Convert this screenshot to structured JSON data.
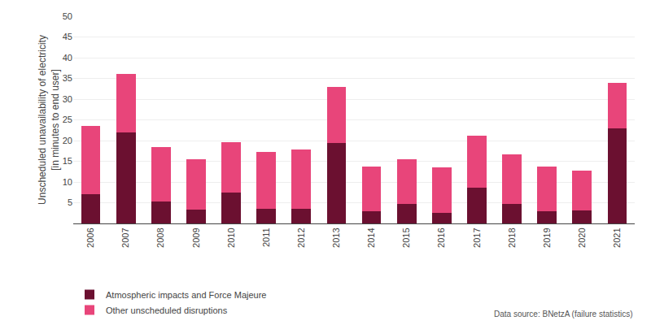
{
  "chart_data": {
    "type": "bar",
    "stacked": true,
    "ylabel": "Unscheduled unavailability of electricity\n[in minutes to end user]",
    "categories": [
      "2006",
      "2007",
      "2008",
      "2009",
      "2010",
      "2011",
      "2012",
      "2013",
      "2014",
      "2015",
      "2016",
      "2017",
      "2018",
      "2019",
      "2020",
      "2021"
    ],
    "series": [
      {
        "name": "Atmospheric impacts and Force Majeure",
        "color": "#6b1030",
        "values": [
          7.0,
          22.0,
          5.2,
          3.3,
          7.5,
          3.5,
          3.5,
          19.5,
          3.0,
          4.7,
          2.5,
          8.7,
          4.7,
          3.0,
          3.2,
          23.0
        ]
      },
      {
        "name": "Other unscheduled disruptions",
        "color": "#e8457a",
        "values": [
          16.5,
          14.0,
          13.2,
          12.2,
          12.1,
          13.7,
          14.3,
          13.5,
          10.7,
          10.7,
          11.1,
          12.4,
          12.0,
          10.7,
          9.5,
          11.0
        ]
      }
    ],
    "ylim": [
      0,
      50
    ],
    "yticks": [
      5,
      10,
      15,
      20,
      25,
      30,
      35,
      40,
      45,
      50
    ],
    "grid": true,
    "legend": "lower left",
    "annotation": "Data source: BNetzA (failure statistics)"
  }
}
